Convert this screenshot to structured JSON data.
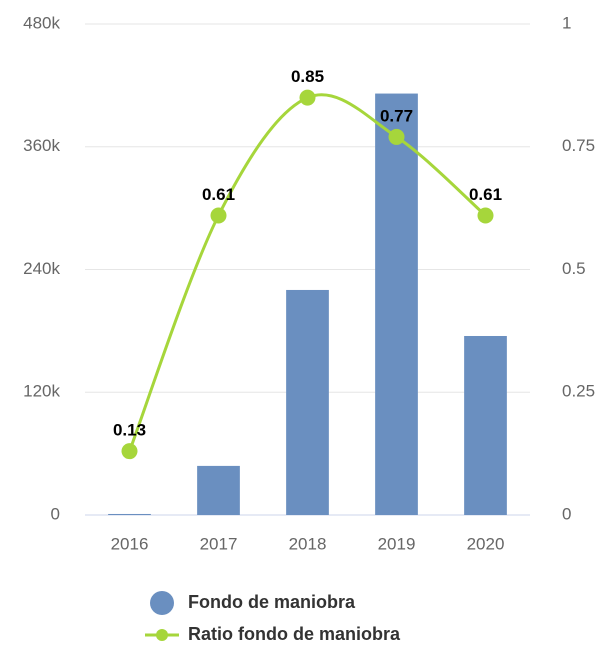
{
  "chart_data": {
    "type": "bar",
    "categories": [
      "2016",
      "2017",
      "2018",
      "2019",
      "2020"
    ],
    "series": [
      {
        "name": "Fondo de maniobra",
        "type": "bar",
        "color": "#6a8fc0",
        "values": [
          1000,
          48000,
          220000,
          412000,
          175000
        ]
      },
      {
        "name": "Ratio fondo de maniobra",
        "type": "line",
        "axis": "y2",
        "color": "#a6d63b",
        "values": [
          0.13,
          0.61,
          0.85,
          0.77,
          0.61
        ]
      }
    ],
    "ylim": [
      0,
      480000
    ],
    "yticks": [
      0,
      {
        "value": 120000,
        "label": "120k"
      },
      {
        "value": 240000,
        "label": "240k"
      },
      {
        "value": 360000,
        "label": "360k"
      },
      {
        "value": 480000,
        "label": "480k"
      }
    ],
    "y2lim": [
      0,
      1
    ],
    "y2ticks": [
      0,
      0.25,
      0.5,
      0.75,
      1
    ],
    "grid": true,
    "legend": "bottom"
  }
}
